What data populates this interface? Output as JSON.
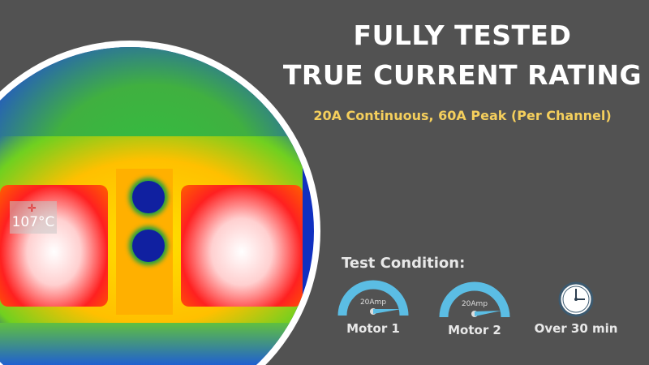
{
  "heading": {
    "line1": "FULLY TESTED",
    "line2": "TRUE CURRENT RATING"
  },
  "subheading": "20A Continuous, 60A Peak (Per Channel)",
  "thermal_image": {
    "temperature_readout": "107°C"
  },
  "test_condition": {
    "title": "Test Condition:",
    "items": [
      {
        "icon": "gauge-icon",
        "value": "20Amp",
        "label": "Motor 1"
      },
      {
        "icon": "gauge-icon",
        "value": "20Amp",
        "label": "Motor 2"
      },
      {
        "icon": "clock-icon",
        "label": "Over 30 min"
      }
    ]
  },
  "colors": {
    "background": "#525252",
    "accent": "#f5cf5c",
    "gauge": "#5bbde4"
  }
}
